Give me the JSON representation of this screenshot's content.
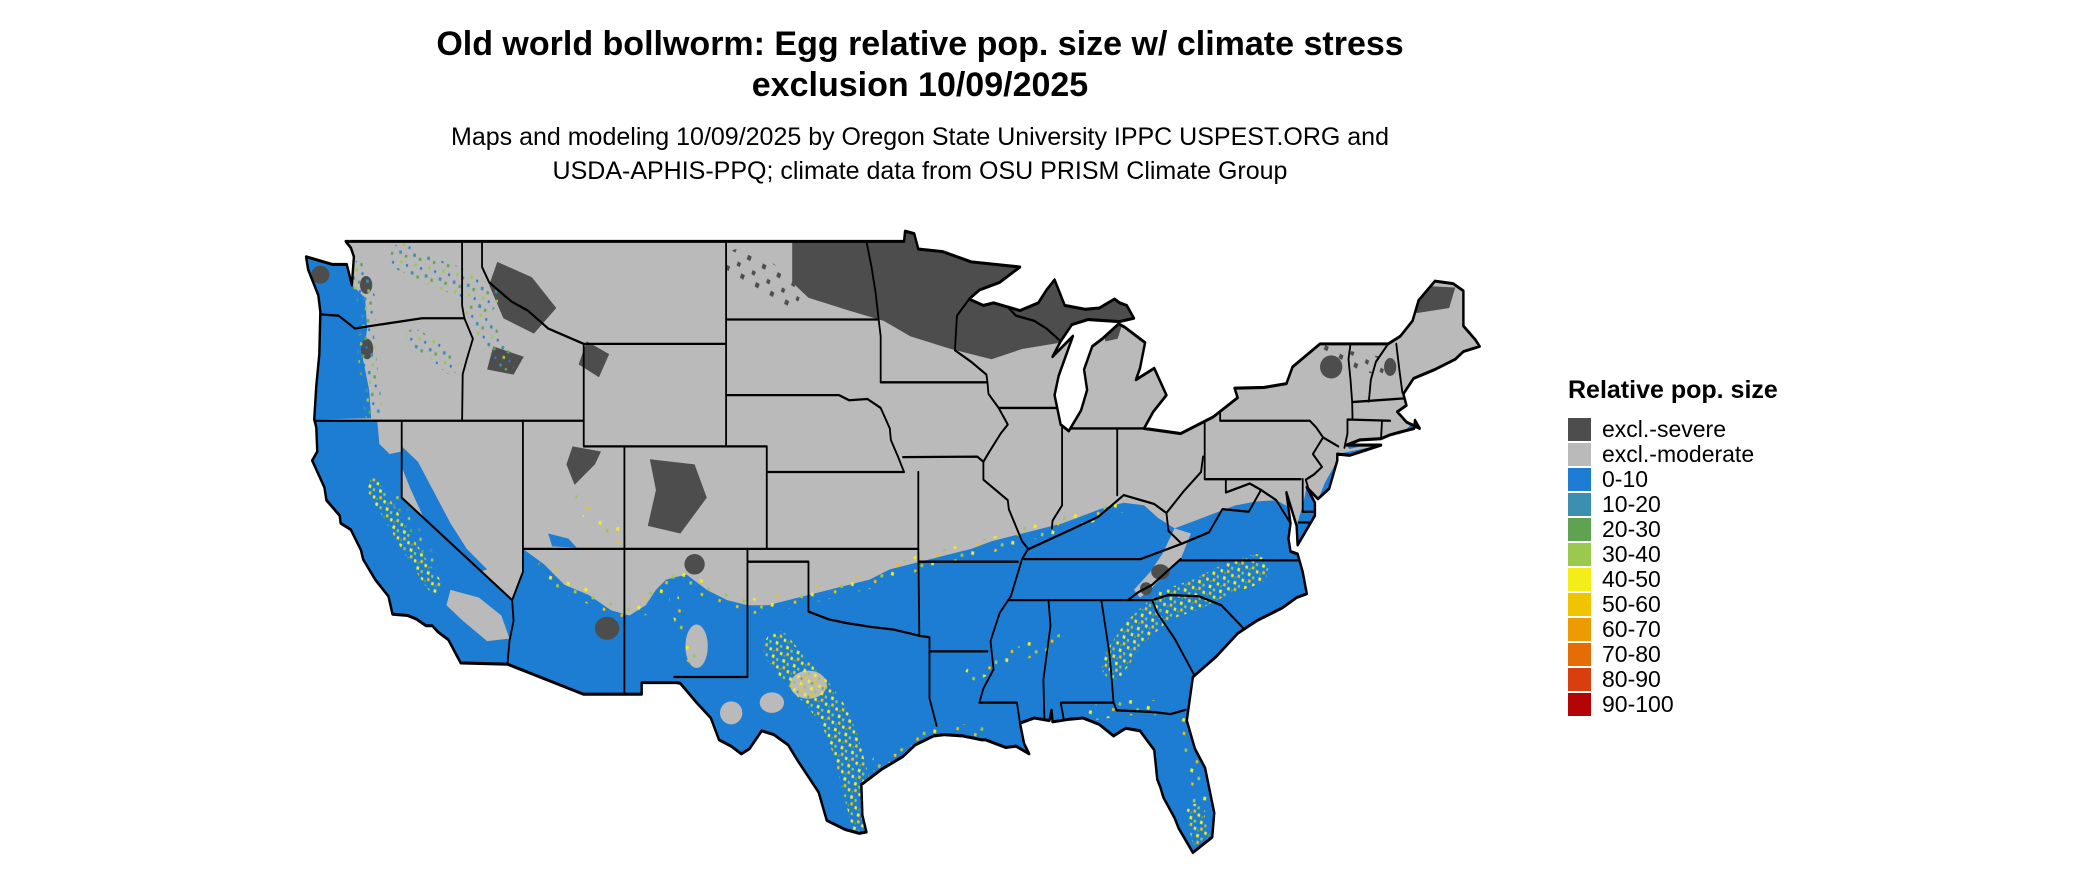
{
  "header": {
    "title_line1": "Old world bollworm: Egg relative pop. size w/ climate stress",
    "title_line2": "exclusion 10/09/2025",
    "subtitle_line1": "Maps and modeling 10/09/2025 by Oregon State University IPPC USPEST.ORG and",
    "subtitle_line2": "USDA-APHIS-PPQ; climate data from OSU PRISM Climate Group"
  },
  "legend": {
    "title": "Relative pop. size",
    "items": [
      {
        "label": "excl.-severe",
        "color": "#4d4d4d"
      },
      {
        "label": "excl.-moderate",
        "color": "#bababa"
      },
      {
        "label": "0-10",
        "color": "#1d7dd2"
      },
      {
        "label": "10-20",
        "color": "#3d8fb0"
      },
      {
        "label": "20-30",
        "color": "#5fa352"
      },
      {
        "label": "30-40",
        "color": "#9bc94e"
      },
      {
        "label": "40-50",
        "color": "#f3ee19"
      },
      {
        "label": "50-60",
        "color": "#f0c400"
      },
      {
        "label": "60-70",
        "color": "#ec9b03"
      },
      {
        "label": "70-80",
        "color": "#e56d05"
      },
      {
        "label": "80-90",
        "color": "#d93e0e"
      },
      {
        "label": "90-100",
        "color": "#b30505"
      }
    ]
  },
  "map": {
    "description": "Contiguous United States raster map of egg relative population size with climate stress exclusion",
    "regions": [
      {
        "area": "Eastern ND, MN, WI, Upper MI, northern Maine, high Rockies",
        "value": "excl.-severe"
      },
      {
        "area": "Interior West, central Plains, Midwest, Northeast",
        "value": "excl.-moderate"
      },
      {
        "area": "Southern US, Gulf states, Southeast, California, Pacific coast",
        "value": "0-10"
      },
      {
        "area": "Transition bands: central/coastal Texas, Southeast piedmont, Sierra foothills, Florida, Cascades",
        "value": "10-60 (speckled)"
      }
    ]
  }
}
